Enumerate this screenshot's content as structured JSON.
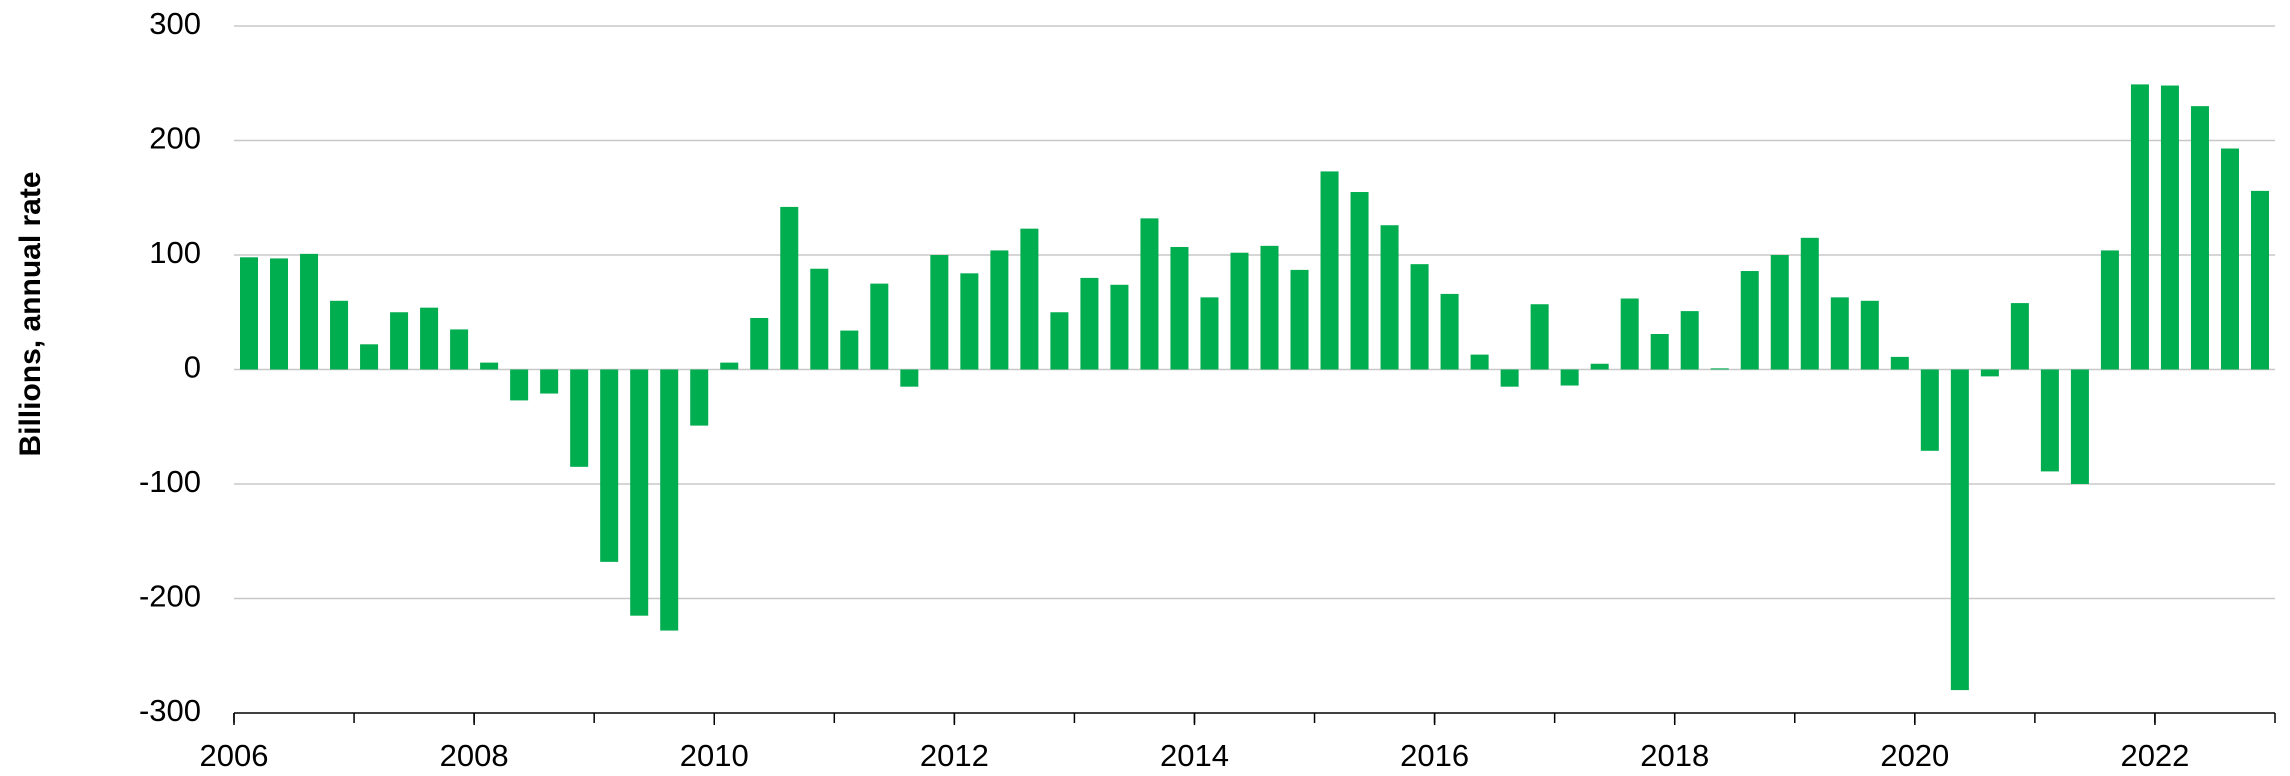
{
  "chart_data": {
    "type": "bar",
    "ylabel": "Billions, annual rate",
    "x": [
      2006,
      2006.25,
      2006.5,
      2006.75,
      2007,
      2007.25,
      2007.5,
      2007.75,
      2008,
      2008.25,
      2008.5,
      2008.75,
      2009,
      2009.25,
      2009.5,
      2009.75,
      2010,
      2010.25,
      2010.5,
      2010.75,
      2011,
      2011.25,
      2011.5,
      2011.75,
      2012,
      2012.25,
      2012.5,
      2012.75,
      2013,
      2013.25,
      2013.5,
      2013.75,
      2014,
      2014.25,
      2014.5,
      2014.75,
      2015,
      2015.25,
      2015.5,
      2015.75,
      2016,
      2016.25,
      2016.5,
      2016.75,
      2017,
      2017.25,
      2017.5,
      2017.75,
      2018,
      2018.25,
      2018.5,
      2018.75,
      2019,
      2019.25,
      2019.5,
      2019.75,
      2020,
      2020.25,
      2020.5,
      2020.75,
      2021,
      2021.25,
      2021.5,
      2021.75,
      2022,
      2022.25,
      2022.5,
      2022.75
    ],
    "values": [
      98,
      97,
      101,
      60,
      22,
      50,
      54,
      35,
      6,
      -27,
      -21,
      -85,
      -168,
      -215,
      -228,
      -49,
      6,
      45,
      142,
      88,
      34,
      75,
      -15,
      100,
      84,
      104,
      123,
      50,
      80,
      74,
      132,
      107,
      63,
      102,
      108,
      87,
      173,
      155,
      126,
      92,
      66,
      13,
      -15,
      57,
      -14,
      5,
      62,
      31,
      51,
      1,
      86,
      100,
      115,
      63,
      60,
      11,
      -71,
      -280,
      -6,
      58,
      -89,
      -100,
      104,
      249,
      248,
      230,
      193,
      156
    ],
    "color": "#00ad4f",
    "xlim": [
      2006,
      2023
    ],
    "xticks": [
      2006,
      2008,
      2010,
      2012,
      2014,
      2016,
      2018,
      2020,
      2022
    ],
    "ylim": [
      -300,
      300
    ],
    "yticks": [
      -300,
      -200,
      -100,
      0,
      100,
      200,
      300
    ],
    "grid": true
  }
}
